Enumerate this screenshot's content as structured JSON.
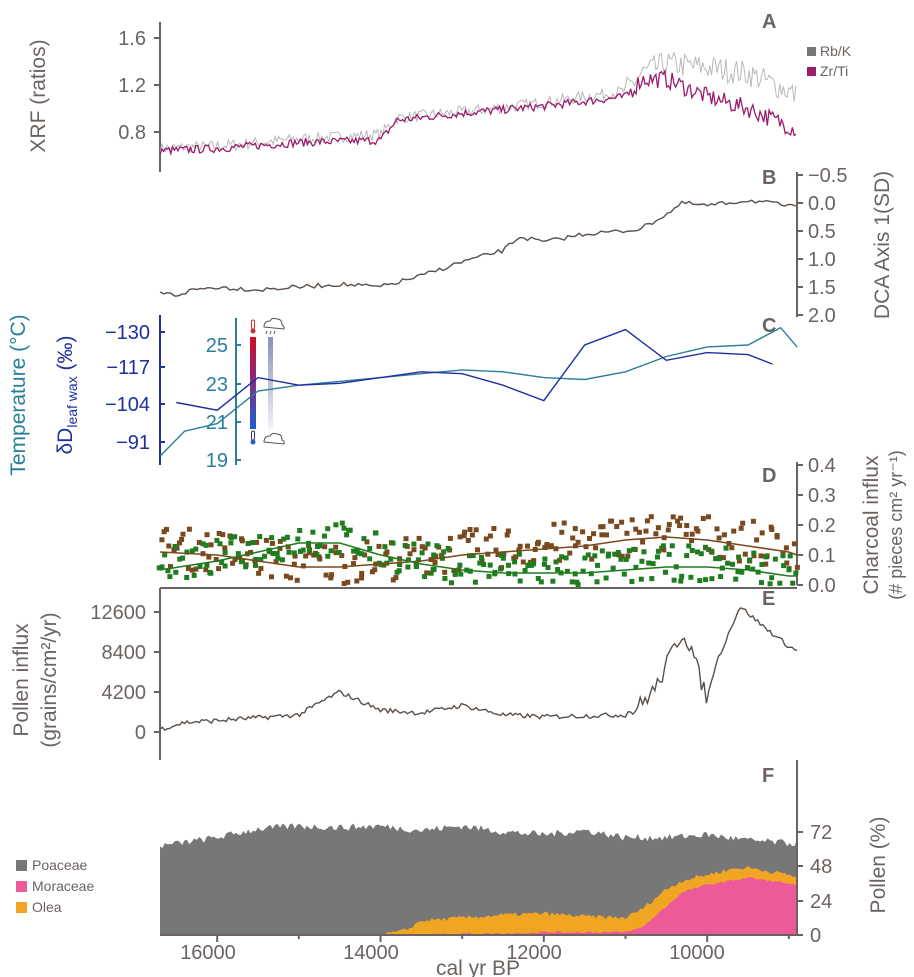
{
  "colors": {
    "axis_brown": "#6b6360",
    "rbk": "#b8b8b8",
    "rbk_legend": "#777777",
    "zrti": "#9b1b6c",
    "temp": "#2a7f9a",
    "dd": "#1f2fa0",
    "charcoal_brown": "#7a4a1e",
    "charcoal_green": "#1e7d1e",
    "poaceae": "#777777",
    "moraceae": "#ec5a9a",
    "olea": "#f0a623",
    "line_dark": "#5a504a"
  },
  "x_axis": {
    "label": "cal yr BP",
    "ticks": [
      "16000",
      "14000",
      "12000",
      "10000"
    ],
    "range": [
      16700,
      8900
    ]
  },
  "panels": {
    "A": {
      "letter": "A",
      "ylabel": "XRF (ratios)",
      "ticks": [
        "1.6",
        "1.2",
        "0.8"
      ],
      "legend": [
        "Rb/K",
        "Zr/Ti"
      ]
    },
    "B": {
      "letter": "B",
      "ylabel": "DCA Axis 1(SD)",
      "ticks": [
        "−0.5",
        "0.0",
        "0.5",
        "1.0",
        "1.5",
        "2.0"
      ]
    },
    "C": {
      "letter": "C",
      "ylabel_temp": "Temperature (°C)",
      "ylabel_dd_main": "δD",
      "ylabel_dd_sub": "leaf wax",
      "ylabel_dd_unit": " (‰)",
      "dd_ticks": [
        "−130",
        "−117",
        "−104",
        "−91"
      ],
      "temp_ticks": [
        "25",
        "23",
        "21",
        "19"
      ]
    },
    "D": {
      "letter": "D",
      "ylabel1": "Charcoal influx",
      "ylabel2": "(# pieces cm² yr⁻¹)",
      "ticks": [
        "0.4",
        "0.3",
        "0.2",
        "0.1",
        "0.0"
      ]
    },
    "E": {
      "letter": "E",
      "ylabel1": "Pollen influx",
      "ylabel2": "(grains/cm²/yr)",
      "ticks": [
        "12600",
        "8400",
        "4200",
        "0"
      ]
    },
    "F": {
      "letter": "F",
      "ylabel": "Pollen (%)",
      "ticks": [
        "72",
        "48",
        "24",
        "0"
      ],
      "legend": [
        "Poaceae",
        "Moraceae",
        "Olea"
      ]
    }
  },
  "chart_data": [
    {
      "panel": "A",
      "type": "line",
      "ylabel": "XRF (ratios)",
      "ylim": [
        0.6,
        1.7
      ],
      "series": [
        {
          "name": "Rb/K",
          "x": [
            16700,
            16000,
            15000,
            14000,
            13800,
            13000,
            12000,
            11000,
            10800,
            10500,
            10000,
            9500,
            9000,
            8900
          ],
          "y": [
            0.66,
            0.68,
            0.74,
            0.78,
            0.92,
            0.97,
            1.05,
            1.15,
            1.3,
            1.38,
            1.35,
            1.3,
            1.15,
            1.1
          ]
        },
        {
          "name": "Zr/Ti",
          "x": [
            16700,
            16000,
            15000,
            14000,
            13800,
            13000,
            12000,
            11000,
            10800,
            10500,
            10000,
            9500,
            9000,
            8900
          ],
          "y": [
            0.64,
            0.66,
            0.71,
            0.73,
            0.9,
            0.96,
            1.02,
            1.1,
            1.25,
            1.25,
            1.1,
            1.0,
            0.85,
            0.82
          ]
        }
      ]
    },
    {
      "panel": "B",
      "type": "line",
      "ylabel": "DCA Axis 1(SD)",
      "ylim": [
        -0.5,
        2.0
      ],
      "series": [
        {
          "name": "DCA Axis 1",
          "x": [
            16700,
            16500,
            16300,
            16000,
            15500,
            15000,
            14500,
            14000,
            13500,
            13000,
            12500,
            12300,
            12000,
            11500,
            11000,
            10800,
            10500,
            10300,
            10000,
            9500,
            9000,
            8900
          ],
          "y": [
            1.6,
            1.65,
            1.55,
            1.5,
            1.55,
            1.5,
            1.45,
            1.5,
            1.3,
            1.05,
            0.85,
            0.6,
            0.7,
            0.55,
            0.5,
            0.45,
            0.2,
            0.0,
            0.05,
            -0.05,
            0.05,
            0.1
          ]
        }
      ]
    },
    {
      "panel": "C",
      "type": "line",
      "series": [
        {
          "name": "Temperature",
          "x": [
            16700,
            16400,
            16000,
            15500,
            15000,
            14500,
            14000,
            13500,
            13000,
            12500,
            12000,
            11500,
            11000,
            10500,
            10000,
            9500,
            9100,
            8900
          ],
          "y": [
            19.2,
            20.5,
            20.9,
            22.6,
            22.9,
            23.1,
            23.3,
            23.5,
            23.7,
            23.6,
            23.3,
            23.2,
            23.6,
            24.4,
            24.9,
            25.0,
            25.9,
            24.9
          ]
        },
        {
          "name": "δD leaf wax",
          "x": [
            16500,
            16000,
            15500,
            15000,
            14500,
            14000,
            13500,
            13000,
            12500,
            12000,
            11500,
            11000,
            10500,
            10000,
            9500,
            9200
          ],
          "y": [
            22.0,
            21.6,
            23.3,
            22.9,
            23.0,
            23.3,
            23.6,
            23.5,
            22.9,
            22.1,
            25.0,
            25.8,
            24.2,
            24.6,
            24.5,
            24.0
          ]
        }
      ]
    },
    {
      "panel": "D",
      "type": "scatter",
      "ylabel": "Charcoal influx",
      "ylim": [
        0.0,
        0.4
      ],
      "series": [
        {
          "name": "brown",
          "smooth": {
            "x": [
              16700,
              16000,
              15500,
              15000,
              14500,
              14000,
              13500,
              13000,
              12500,
              12000,
              11500,
              11000,
              10500,
              10000,
              9500,
              9000,
              8900
            ],
            "y": [
              0.11,
              0.1,
              0.08,
              0.06,
              0.06,
              0.07,
              0.08,
              0.1,
              0.11,
              0.12,
              0.13,
              0.15,
              0.16,
              0.15,
              0.13,
              0.11,
              0.1
            ]
          }
        },
        {
          "name": "green",
          "smooth": {
            "x": [
              16700,
              16000,
              15500,
              15000,
              14500,
              14000,
              13500,
              13000,
              12500,
              12000,
              11500,
              11000,
              10500,
              10000,
              9500,
              9000,
              8900
            ],
            "y": [
              0.05,
              0.08,
              0.11,
              0.14,
              0.14,
              0.1,
              0.07,
              0.05,
              0.04,
              0.04,
              0.04,
              0.05,
              0.06,
              0.06,
              0.05,
              0.03,
              0.03
            ]
          }
        }
      ]
    },
    {
      "panel": "E",
      "type": "line",
      "ylabel": "Pollen influx",
      "ylim": [
        -500,
        15000
      ],
      "series": [
        {
          "name": "Pollen influx",
          "x": [
            16700,
            16400,
            16000,
            15500,
            15000,
            14700,
            14500,
            14000,
            13500,
            13000,
            12500,
            12000,
            11500,
            11000,
            10800,
            10600,
            10400,
            10300,
            10200,
            10100,
            10000,
            9900,
            9600,
            9300,
            9000,
            8900
          ],
          "y": [
            300,
            1000,
            1200,
            1500,
            1800,
            3300,
            4200,
            2300,
            2000,
            2800,
            1800,
            1600,
            1700,
            1800,
            3000,
            5000,
            9000,
            10500,
            9000,
            6000,
            3500,
            7000,
            13200,
            11000,
            9000,
            8500
          ]
        }
      ]
    },
    {
      "panel": "F",
      "type": "area",
      "ylabel": "Pollen (%)",
      "ylim": [
        0,
        90
      ],
      "series": [
        {
          "name": "Poaceae",
          "x": [
            16700,
            16000,
            15500,
            15000,
            14500,
            14000,
            13500,
            13000,
            12500,
            12000,
            11500,
            11000,
            10500,
            10000,
            9500,
            9000,
            8900
          ],
          "y": [
            62,
            68,
            74,
            76,
            75,
            76,
            73,
            76,
            72,
            70,
            73,
            68,
            68,
            70,
            66,
            64,
            64
          ]
        },
        {
          "name": "Olea",
          "x": [
            16700,
            16000,
            15000,
            14000,
            13700,
            13500,
            13000,
            12500,
            12000,
            11500,
            11000,
            10800,
            10500,
            10300,
            10000,
            9700,
            9500,
            9000,
            8900
          ],
          "y": [
            0,
            0,
            0,
            0,
            3,
            10,
            12,
            14,
            15,
            13,
            12,
            18,
            32,
            38,
            42,
            46,
            47,
            42,
            40
          ]
        },
        {
          "name": "Moraceae",
          "x": [
            16700,
            16000,
            15000,
            14000,
            13500,
            13000,
            12500,
            12000,
            11500,
            11000,
            10800,
            10500,
            10300,
            10000,
            9700,
            9500,
            9000,
            8900
          ],
          "y": [
            0,
            0,
            0,
            0,
            0,
            1,
            1,
            2,
            2,
            2,
            5,
            20,
            30,
            35,
            38,
            40,
            36,
            34
          ]
        }
      ]
    }
  ]
}
